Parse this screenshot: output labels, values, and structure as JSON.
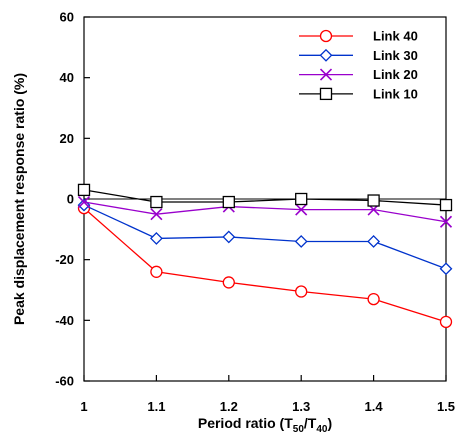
{
  "chart_data": {
    "type": "line",
    "title": "",
    "xlabel": "Period ratio (T50/T40)",
    "xlabel_parts": {
      "main": "Period ratio (T",
      "sub1": "50",
      "mid": "/T",
      "sub2": "40",
      "end": ")"
    },
    "ylabel": "Peak displacement response ratio (%)",
    "xlim": [
      1.0,
      1.5
    ],
    "ylim": [
      -60,
      60
    ],
    "x_ticks": [
      "1",
      "1.1",
      "1.2",
      "1.3",
      "1.4",
      "1.5"
    ],
    "y_ticks": [
      "60",
      "40",
      "20",
      "0",
      "-20",
      "-40",
      "-60"
    ],
    "grid": false,
    "legend_position": "top-right",
    "x": [
      1.0,
      1.1,
      1.2,
      1.3,
      1.4,
      1.5
    ],
    "series": [
      {
        "name": "Link 40",
        "color": "#ff0000",
        "marker": "circle",
        "values": [
          -3.0,
          -24.0,
          -27.5,
          -30.5,
          -33.0,
          -40.5
        ]
      },
      {
        "name": "Link 30",
        "color": "#0033cc",
        "marker": "diamond",
        "values": [
          -2.0,
          -13.0,
          -12.5,
          -14.0,
          -14.0,
          -23.0
        ]
      },
      {
        "name": "Link 20",
        "color": "#9900cc",
        "marker": "x",
        "values": [
          -1.0,
          -5.0,
          -2.5,
          -3.5,
          -3.5,
          -7.5
        ]
      },
      {
        "name": "Link 10",
        "color": "#000000",
        "marker": "square",
        "values": [
          3.0,
          -1.0,
          -1.0,
          0.0,
          -0.5,
          -2.0
        ]
      }
    ],
    "zero_line": true
  }
}
